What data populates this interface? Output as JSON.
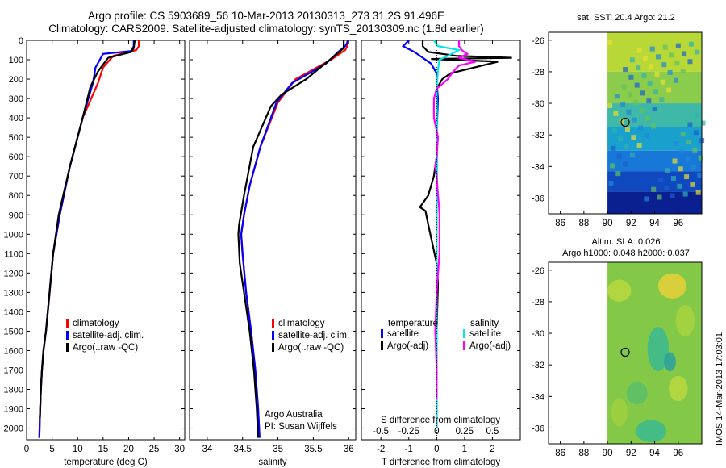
{
  "header": {
    "line1": "Argo profile: CS 5903689_56 10-Mar-2013 20130313_273 31.2S 91.496E",
    "line2": "Climatology: CARS2009. Satellite-adjusted climatology: synTS_20130309.nc (1.8d earlier)"
  },
  "footer": {
    "stamp": "IMOS 14-Mar-2013 17:03:01"
  },
  "chart_data": [
    {
      "type": "line",
      "panel": "temperature",
      "xlabel": "temperature (deg C)",
      "xlim": [
        0,
        31
      ],
      "ylim": [
        2060,
        0
      ],
      "xticks": [
        "0",
        "5",
        "10",
        "15",
        "20",
        "25",
        "30"
      ],
      "xtickvals": [
        0,
        5,
        10,
        15,
        20,
        25,
        30
      ],
      "yticks": [
        "0",
        "100",
        "200",
        "300",
        "400",
        "500",
        "600",
        "700",
        "800",
        "900",
        "1000",
        "1100",
        "1200",
        "1300",
        "1400",
        "1500",
        "1600",
        "1700",
        "1800",
        "1900",
        "2000"
      ],
      "ytickvals": [
        0,
        100,
        200,
        300,
        400,
        500,
        600,
        700,
        800,
        900,
        1000,
        1100,
        1200,
        1300,
        1400,
        1500,
        1600,
        1700,
        1800,
        1900,
        2000
      ],
      "legend": [
        "climatology",
        "satellite-adj. clim.",
        "Argo(..raw -QC)"
      ],
      "series": [
        {
          "name": "climatology",
          "color": "#ff0000",
          "x": [
            22,
            22,
            21.5,
            17,
            15,
            14,
            11,
            8.5,
            6.5,
            5.2,
            4.5,
            3.8,
            3.3,
            3,
            2.8,
            2.6,
            2.5
          ],
          "y": [
            0,
            30,
            50,
            80,
            140,
            220,
            400,
            650,
            900,
            1100,
            1300,
            1500,
            1600,
            1700,
            1800,
            1950,
            2050
          ]
        },
        {
          "name": "satellite-adj. clim.",
          "color": "#0000ff",
          "x": [
            21,
            21,
            20.5,
            15,
            13.5,
            13,
            11,
            8.5,
            6.5,
            5.2,
            4.5,
            3.8,
            3.3,
            3,
            2.8,
            2.6,
            2.5
          ],
          "y": [
            0,
            30,
            55,
            70,
            140,
            220,
            400,
            650,
            900,
            1100,
            1300,
            1500,
            1600,
            1700,
            1800,
            1950,
            2050
          ]
        },
        {
          "name": "Argo(..raw -QC)",
          "color": "#000000",
          "x": [
            21.2,
            21,
            20.5,
            16,
            14,
            12.5,
            11,
            8.5,
            6.3,
            5.2,
            4.5,
            3.8,
            3.3,
            3,
            2.8,
            2.6
          ],
          "y": [
            0,
            40,
            60,
            90,
            160,
            240,
            400,
            650,
            900,
            1100,
            1300,
            1500,
            1600,
            1700,
            1800,
            1950
          ]
        }
      ]
    },
    {
      "type": "line",
      "panel": "salinity",
      "xlabel": "salinity",
      "xlim": [
        33.75,
        36.1
      ],
      "ylim": [
        2060,
        0
      ],
      "xticks": [
        "34",
        "34.5",
        "35",
        "35.5",
        "36"
      ],
      "xtickvals": [
        34,
        34.5,
        35,
        35.5,
        36
      ],
      "legend": [
        "climatology",
        "satellite-adj. clim.",
        "Argo(..raw -QC)"
      ],
      "annotation": [
        "Argo Australia",
        "PI: Susan Wijffels"
      ],
      "series": [
        {
          "name": "climatology",
          "color": "#ff0000",
          "x": [
            35.98,
            35.98,
            35.95,
            35.75,
            35.25,
            35.0,
            34.75,
            34.6,
            34.52,
            34.48,
            34.5,
            34.55,
            34.62,
            34.68,
            34.72,
            34.74
          ],
          "y": [
            0,
            30,
            50,
            100,
            200,
            320,
            550,
            750,
            900,
            1000,
            1100,
            1300,
            1500,
            1700,
            1900,
            2050
          ]
        },
        {
          "name": "satellite-adj. clim.",
          "color": "#0000ff",
          "x": [
            36.0,
            35.95,
            35.85,
            35.68,
            35.2,
            34.98,
            34.75,
            34.6,
            34.52,
            34.48,
            34.5,
            34.55,
            34.62,
            34.68,
            34.72,
            34.74
          ],
          "y": [
            0,
            30,
            60,
            120,
            220,
            320,
            550,
            750,
            900,
            1000,
            1100,
            1300,
            1500,
            1700,
            1900,
            2050
          ]
        },
        {
          "name": "Argo(..raw -QC)",
          "color": "#000000",
          "x": [
            35.93,
            35.93,
            35.8,
            35.4,
            35.05,
            34.9,
            34.65,
            34.52,
            34.45,
            34.44,
            34.46,
            34.52,
            34.6,
            34.66,
            34.7,
            34.72
          ],
          "y": [
            0,
            40,
            80,
            200,
            280,
            340,
            550,
            800,
            950,
            1000,
            1150,
            1300,
            1500,
            1700,
            1900,
            2050
          ]
        }
      ]
    },
    {
      "type": "line",
      "panel": "difference",
      "xlabel": "T difference from climatology",
      "xlabel_top": "S difference from climatology",
      "xlim": [
        -2.7,
        3.0
      ],
      "ylim": [
        2060,
        0
      ],
      "xticks": [
        "-2",
        "-1",
        "0",
        "1",
        "2"
      ],
      "xtickvals": [
        -2,
        -1,
        0,
        1,
        2
      ],
      "sticks": [
        "-0.5",
        "-0.25",
        "0",
        "0.25",
        "0.5"
      ],
      "sticks_at_T": [
        -2,
        -1,
        0,
        1,
        2
      ],
      "legend_groups": [
        {
          "title": "temperature",
          "items": [
            {
              "label": "satellite",
              "color": "#0000ff"
            },
            {
              "label": "Argo(-adj)",
              "color": "#000000"
            }
          ]
        },
        {
          "title": "salinity",
          "items": [
            {
              "label": "satellite",
              "color": "#00e5ee"
            },
            {
              "label": "Argo(-adj)",
              "color": "#ff00ff"
            }
          ]
        }
      ],
      "series": [
        {
          "name": "temperature satellite",
          "color": "#0000ff",
          "x": [
            -1,
            -1.2,
            -0.8,
            -0.2,
            0,
            0,
            0.05,
            0.02,
            0
          ],
          "y": [
            0,
            30,
            60,
            120,
            170,
            220,
            300,
            400,
            450
          ]
        },
        {
          "name": "temperature Argo(-adj)",
          "color": "#000000",
          "x": [
            -0.5,
            -0.5,
            -0.3,
            0.7,
            2.7,
            -0.2,
            2.2,
            0.5,
            0.2,
            0,
            0.02,
            0,
            -0.1,
            -0.3,
            -0.6,
            -0.4,
            -0.3,
            -0.15,
            0,
            0.05,
            0,
            0
          ],
          "y": [
            0,
            30,
            60,
            80,
            90,
            96,
            110,
            170,
            200,
            250,
            400,
            600,
            700,
            800,
            860,
            880,
            950,
            1050,
            1150,
            1250,
            1500,
            2000
          ]
        },
        {
          "name": "salinity satellite",
          "color": "#00e5ee",
          "x": [
            -0.1,
            0.05,
            0.8,
            0.4,
            0.1,
            0.05,
            0,
            0.02,
            0,
            0
          ],
          "y": [
            0,
            30,
            50,
            80,
            100,
            150,
            250,
            500,
            1000,
            2000
          ]
        },
        {
          "name": "salinity Argo(-adj)",
          "color": "#ff00ff",
          "x": [
            0.8,
            0.8,
            0.9,
            1.1,
            0.8,
            1.4,
            0.8,
            0.6,
            0.4,
            0,
            -0.1,
            -0.1,
            0.05,
            0,
            -0.05,
            0,
            0.05,
            0.08,
            0.1,
            0.1,
            0.1,
            0.05,
            0,
            -0.05,
            0,
            0
          ],
          "y": [
            0,
            30,
            50,
            70,
            90,
            110,
            130,
            160,
            200,
            250,
            300,
            400,
            500,
            600,
            650,
            700,
            800,
            850,
            900,
            1000,
            1100,
            1200,
            1300,
            1500,
            1700,
            1850
          ]
        }
      ]
    },
    {
      "type": "heatmap",
      "panel": "sst",
      "title": "sat. SST: 20.4 Argo: 21.2",
      "xlim": [
        85,
        98
      ],
      "ylim": [
        -37,
        -25.5
      ],
      "xticks": [
        "86",
        "88",
        "90",
        "92",
        "94",
        "96"
      ],
      "xtickvals": [
        86,
        88,
        90,
        92,
        94,
        96
      ],
      "yticks": [
        "-26",
        "-28",
        "-30",
        "-32",
        "-34",
        "-36"
      ],
      "ytickvals": [
        -26,
        -28,
        -30,
        -32,
        -34,
        -36
      ],
      "data_xrange": [
        90,
        98
      ],
      "marker": {
        "lon": 91.5,
        "lat": -31.2
      }
    },
    {
      "type": "heatmap",
      "panel": "sla",
      "title": [
        "Altim. SLA: 0.026",
        "Argo h1000: 0.048 h2000: 0.037"
      ],
      "xlim": [
        85,
        98
      ],
      "ylim": [
        -37,
        -25.5
      ],
      "xticks": [
        "86",
        "88",
        "90",
        "92",
        "94",
        "96"
      ],
      "xtickvals": [
        86,
        88,
        90,
        92,
        94,
        96
      ],
      "yticks": [
        "-26",
        "-28",
        "-30",
        "-32",
        "-34",
        "-36"
      ],
      "ytickvals": [
        -26,
        -28,
        -30,
        -32,
        -34,
        -36
      ],
      "data_xrange": [
        90,
        98
      ],
      "marker": {
        "lon": 91.5,
        "lat": -31.2
      }
    }
  ]
}
